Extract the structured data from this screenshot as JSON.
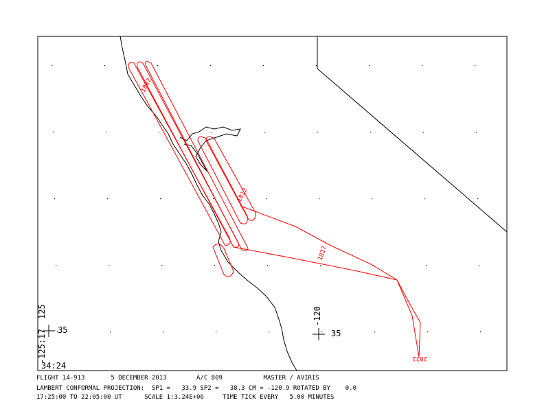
{
  "map": {
    "grid_labels": {
      "west_lon": "-125:17",
      "west_lon2": "125",
      "west_lat": "35",
      "south_lat": "34:24",
      "mid_lon": "-120",
      "mid_lat": "35"
    },
    "flight_labels": [
      "1802",
      "1812",
      "1827",
      "2022"
    ]
  },
  "footer": {
    "lines": [
      "FLIGHT 14-913       5 DECEMBER 2013        A/C 809           MASTER / AVIRIS",
      "LAMBERT CONFORMAL PROJECTION:  SP1 =   33.9 SP2 =   38.3 CM = -120.9 ROTATED BY    0.0",
      "17:25:00 TO 22:05:00 UT      SCALE 1:3.24E+06     TIME TICK EVERY   5.00 MINUTES"
    ]
  }
}
